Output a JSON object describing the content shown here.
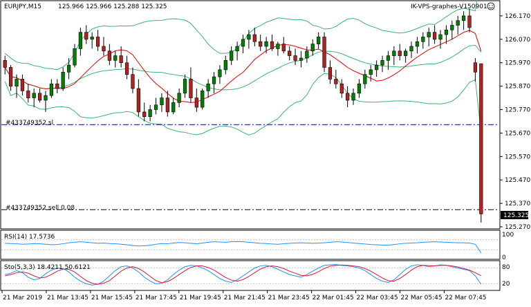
{
  "header": {
    "symbol_tf": "EURJPY,M15",
    "ohlc": "125.966 125.966 125.288 125.325",
    "server": "IK-VPS-graphes-V150901",
    "smiley": "☺"
  },
  "orders": {
    "sl_label": "#433749352 sl",
    "sl_price": 125.706,
    "entry_label": "#433749352 sell 0.08",
    "entry_price": 125.343
  },
  "current_price": {
    "label": "125.325",
    "value": 125.325
  },
  "panes": {
    "rsi": {
      "title": "RSI(14) 17.5736",
      "level_max": "100",
      "level_min": "0",
      "ymin": 0,
      "ymax": 100,
      "levels": [
        70,
        30
      ],
      "line_color": "#1e90ff",
      "values": [
        56,
        55,
        54,
        52,
        53,
        55,
        54,
        52,
        50,
        51,
        54,
        58,
        60,
        62,
        60,
        58,
        56,
        57,
        55,
        54,
        52,
        50,
        47,
        45,
        46,
        48,
        52,
        55,
        54,
        57,
        59,
        58,
        56,
        54,
        57,
        60,
        62,
        61,
        60,
        62,
        63,
        62,
        60,
        58,
        56,
        55,
        53,
        52,
        54,
        56,
        57,
        58,
        57,
        56,
        57,
        58,
        60,
        62,
        61,
        59,
        57,
        55,
        53,
        51,
        50,
        49,
        48,
        51,
        54,
        56,
        57,
        58,
        60,
        61,
        62,
        61,
        60,
        59,
        58,
        58,
        57,
        52,
        17.5736
      ]
    },
    "stoch": {
      "title": "Sto(5,3,3) 18.4211 50.6121",
      "level_top": "80",
      "level_bottom": "20",
      "ymin": 0,
      "ymax": 100,
      "levels": [
        80,
        20
      ],
      "main_color": "#1e90ff",
      "signal_color": "#dc143c",
      "main": [
        55,
        60,
        70,
        62,
        45,
        35,
        40,
        58,
        72,
        80,
        78,
        65,
        45,
        30,
        20,
        15,
        18,
        30,
        50,
        70,
        85,
        88,
        80,
        65,
        45,
        30,
        20,
        22,
        35,
        55,
        72,
        85,
        90,
        88,
        80,
        70,
        55,
        40,
        30,
        25,
        35,
        50,
        65,
        80,
        88,
        90,
        85,
        75,
        65,
        55,
        50,
        45,
        55,
        68,
        80,
        90,
        92,
        93,
        90,
        88,
        85,
        80,
        70,
        55,
        40,
        30,
        25,
        35,
        55,
        75,
        88,
        92,
        90,
        85,
        88,
        92,
        90,
        85,
        80,
        75,
        70,
        50,
        18.4211
      ],
      "signal": [
        50,
        55,
        62,
        65,
        60,
        50,
        42,
        45,
        55,
        68,
        76,
        75,
        65,
        48,
        32,
        22,
        18,
        22,
        32,
        50,
        68,
        80,
        85,
        78,
        65,
        48,
        32,
        24,
        28,
        40,
        55,
        70,
        82,
        88,
        88,
        82,
        72,
        58,
        44,
        34,
        30,
        36,
        48,
        62,
        76,
        85,
        88,
        85,
        78,
        68,
        60,
        52,
        50,
        56,
        66,
        78,
        87,
        90,
        91,
        90,
        88,
        85,
        78,
        68,
        55,
        42,
        32,
        30,
        40,
        55,
        72,
        85,
        90,
        89,
        88,
        90,
        90,
        88,
        84,
        78,
        72,
        62,
        50.6121
      ]
    }
  },
  "chart_data": {
    "type": "candlestick",
    "symbol": "EURJPY",
    "timeframe": "M15",
    "ylim": [
      125.27,
      126.22
    ],
    "price_ticks": [
      "126.170",
      "126.070",
      "125.970",
      "125.870",
      "125.770",
      "125.670",
      "125.570",
      "125.470",
      "125.370",
      "125.270"
    ],
    "time_ticks": [
      "21 Mar 2019",
      "21 Mar 13:45",
      "21 Mar 15:45",
      "21 Mar 17:45",
      "21 Mar 19:45",
      "21 Mar 21:45",
      "21 Mar 23:45",
      "22 Mar 01:45",
      "22 Mar 03:45",
      "22 Mar 05:45",
      "22 Mar 07:45"
    ],
    "bull_color": "#008000",
    "bear_color": "#b22222",
    "ma_fast_color": "#e00000",
    "bands_color": "#3cb371",
    "level_line_color": "#00008b",
    "entry_line_color": "#000000",
    "ohlc": [
      [
        125.98,
        126.0,
        125.92,
        125.95
      ],
      [
        125.95,
        125.96,
        125.85,
        125.87
      ],
      [
        125.87,
        125.92,
        125.82,
        125.9
      ],
      [
        125.9,
        125.92,
        125.83,
        125.85
      ],
      [
        125.85,
        125.88,
        125.8,
        125.82
      ],
      [
        125.82,
        125.86,
        125.78,
        125.84
      ],
      [
        125.84,
        125.86,
        125.8,
        125.81
      ],
      [
        125.81,
        125.85,
        125.76,
        125.83
      ],
      [
        125.83,
        125.9,
        125.82,
        125.88
      ],
      [
        125.88,
        125.9,
        125.84,
        125.86
      ],
      [
        125.86,
        125.95,
        125.85,
        125.93
      ],
      [
        125.93,
        125.99,
        125.9,
        125.96
      ],
      [
        125.96,
        126.05,
        125.95,
        126.03
      ],
      [
        126.03,
        126.12,
        126.0,
        126.1
      ],
      [
        126.1,
        126.13,
        126.05,
        126.07
      ],
      [
        126.07,
        126.1,
        126.03,
        126.08
      ],
      [
        126.08,
        126.11,
        126.02,
        126.04
      ],
      [
        126.04,
        126.08,
        126.0,
        126.02
      ],
      [
        126.02,
        126.05,
        125.96,
        125.98
      ],
      [
        125.98,
        126.02,
        125.95,
        126.0
      ],
      [
        126.0,
        126.04,
        125.95,
        125.97
      ],
      [
        125.97,
        126.0,
        125.9,
        125.92
      ],
      [
        125.92,
        125.95,
        125.84,
        125.86
      ],
      [
        125.86,
        125.9,
        125.74,
        125.76
      ],
      [
        125.76,
        125.8,
        125.72,
        125.74
      ],
      [
        125.74,
        125.79,
        125.72,
        125.77
      ],
      [
        125.77,
        125.82,
        125.75,
        125.79
      ],
      [
        125.79,
        125.84,
        125.76,
        125.82
      ],
      [
        125.82,
        125.85,
        125.74,
        125.76
      ],
      [
        125.76,
        125.82,
        125.75,
        125.8
      ],
      [
        125.8,
        125.86,
        125.78,
        125.84
      ],
      [
        125.84,
        125.92,
        125.82,
        125.9
      ],
      [
        125.9,
        125.95,
        125.8,
        125.82
      ],
      [
        125.82,
        125.86,
        125.76,
        125.78
      ],
      [
        125.78,
        125.86,
        125.77,
        125.85
      ],
      [
        125.85,
        125.9,
        125.82,
        125.88
      ],
      [
        125.88,
        125.93,
        125.84,
        125.91
      ],
      [
        125.91,
        125.96,
        125.88,
        125.94
      ],
      [
        125.94,
        126.0,
        125.92,
        125.98
      ],
      [
        125.98,
        126.04,
        125.96,
        126.02
      ],
      [
        126.02,
        126.06,
        125.98,
        126.04
      ],
      [
        126.04,
        126.09,
        126.01,
        126.07
      ],
      [
        126.07,
        126.11,
        126.03,
        126.09
      ],
      [
        126.09,
        126.12,
        126.04,
        126.06
      ],
      [
        126.06,
        126.09,
        126.02,
        126.04
      ],
      [
        126.04,
        126.08,
        126.01,
        126.06
      ],
      [
        126.06,
        126.09,
        126.02,
        126.03
      ],
      [
        126.03,
        126.06,
        126.0,
        126.05
      ],
      [
        126.05,
        126.08,
        126.01,
        126.02
      ],
      [
        126.02,
        126.04,
        125.98,
        126.0
      ],
      [
        126.0,
        126.03,
        125.96,
        125.98
      ],
      [
        125.98,
        126.02,
        125.95,
        125.99
      ],
      [
        125.99,
        126.04,
        125.97,
        126.02
      ],
      [
        126.02,
        126.07,
        126.0,
        126.05
      ],
      [
        126.05,
        126.1,
        126.03,
        126.08
      ],
      [
        126.08,
        126.1,
        125.93,
        125.95
      ],
      [
        125.95,
        125.98,
        125.88,
        125.9
      ],
      [
        125.9,
        125.94,
        125.86,
        125.88
      ],
      [
        125.88,
        125.9,
        125.82,
        125.84
      ],
      [
        125.84,
        125.87,
        125.78,
        125.81
      ],
      [
        125.81,
        125.86,
        125.79,
        125.84
      ],
      [
        125.84,
        125.9,
        125.82,
        125.88
      ],
      [
        125.88,
        125.94,
        125.86,
        125.92
      ],
      [
        125.92,
        125.96,
        125.89,
        125.94
      ],
      [
        125.94,
        125.98,
        125.91,
        125.96
      ],
      [
        125.96,
        126.0,
        125.93,
        125.98
      ],
      [
        125.98,
        126.02,
        125.94,
        126.0
      ],
      [
        126.0,
        126.04,
        125.96,
        126.02
      ],
      [
        126.02,
        126.05,
        125.98,
        126.0
      ],
      [
        126.0,
        126.03,
        125.97,
        126.02
      ],
      [
        126.02,
        126.06,
        125.99,
        126.04
      ],
      [
        126.04,
        126.08,
        126.01,
        126.06
      ],
      [
        126.06,
        126.1,
        126.03,
        126.08
      ],
      [
        126.08,
        126.12,
        126.04,
        126.1
      ],
      [
        126.1,
        126.13,
        126.05,
        126.07
      ],
      [
        126.07,
        126.11,
        126.03,
        126.09
      ],
      [
        126.09,
        126.13,
        126.05,
        126.11
      ],
      [
        126.11,
        126.15,
        126.07,
        126.13
      ],
      [
        126.13,
        126.17,
        126.09,
        126.15
      ],
      [
        126.15,
        126.19,
        126.11,
        126.17
      ],
      [
        126.17,
        126.2,
        126.1,
        126.12
      ],
      [
        125.97,
        125.99,
        125.89,
        125.93
      ],
      [
        125.966,
        125.966,
        125.288,
        125.325
      ]
    ]
  }
}
